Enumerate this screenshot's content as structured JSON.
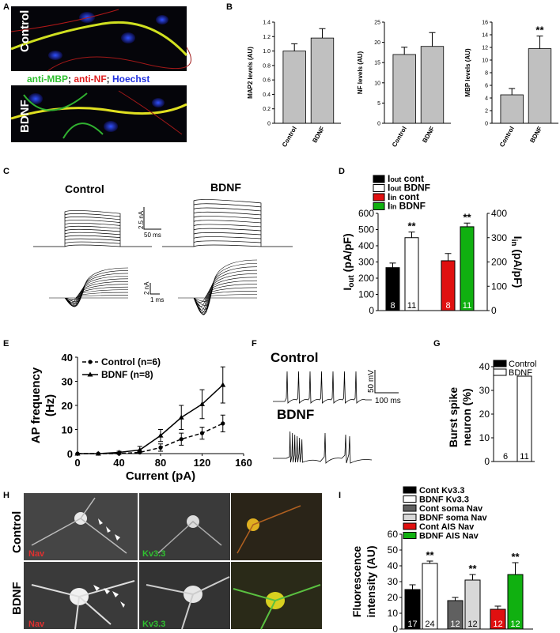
{
  "panels": {
    "A": "A",
    "B": "B",
    "C": "C",
    "D": "D",
    "E": "E",
    "F": "F",
    "G": "G",
    "H": "H",
    "I": "I"
  },
  "panelA": {
    "row_labels": [
      "Control",
      "BDNF"
    ],
    "stain_legend": [
      {
        "text": "anti-MBP",
        "color": "#2fc02f"
      },
      {
        "text": "; ",
        "color": "#111111"
      },
      {
        "text": "anti-NF",
        "color": "#e02020"
      },
      {
        "text": "; ",
        "color": "#111111"
      },
      {
        "text": "Hoechst",
        "color": "#2030e0"
      }
    ]
  },
  "panelC": {
    "titles": [
      "Control",
      "BDNF"
    ],
    "scale1": [
      "2.5 nA",
      "50 ms"
    ],
    "scale2": [
      "2 nA",
      "1 ms"
    ]
  },
  "panelF": {
    "titles": [
      "Control",
      "BDNF"
    ],
    "scale": [
      "50 mV",
      "100 ms"
    ]
  },
  "panelH": {
    "row_labels": [
      "Control",
      "BDNF"
    ],
    "channels": [
      "Nav",
      "Kv3.3"
    ],
    "channel_colors": [
      "#e03030",
      "#30c030"
    ]
  },
  "chart_data": [
    {
      "id": "B1",
      "type": "bar",
      "categories": [
        "Control",
        "BDNF"
      ],
      "values": [
        1.0,
        1.18
      ],
      "errors": [
        0.1,
        0.13
      ],
      "ylabel": "MAP2 levels (AU)",
      "ylim": [
        0,
        1.4
      ],
      "yticks": [
        "0",
        "0.2",
        "0.4",
        "0.6",
        "0.8",
        "1.0",
        "1.2",
        "1.4"
      ],
      "stars": [
        "",
        ""
      ],
      "bar_color": "#c0c0c0"
    },
    {
      "id": "B2",
      "type": "bar",
      "categories": [
        "Control",
        "BDNF"
      ],
      "values": [
        17,
        19
      ],
      "errors": [
        1.8,
        3.4
      ],
      "ylabel": "NF levels (AU)",
      "ylim": [
        0,
        25
      ],
      "yticks": [
        "0",
        "5",
        "10",
        "15",
        "20",
        "25"
      ],
      "stars": [
        "",
        ""
      ],
      "bar_color": "#c0c0c0"
    },
    {
      "id": "B3",
      "type": "bar",
      "categories": [
        "Control",
        "BDNF"
      ],
      "values": [
        4.5,
        11.8
      ],
      "errors": [
        1.0,
        2.0
      ],
      "ylabel": "MBP levels (AU)",
      "ylim": [
        0,
        16
      ],
      "yticks": [
        "0",
        "2",
        "4",
        "6",
        "8",
        "10",
        "12",
        "14",
        "16"
      ],
      "stars": [
        "",
        "**"
      ],
      "bar_color": "#c0c0c0"
    },
    {
      "id": "D",
      "type": "bar",
      "ylabel_left": "Iout (pA/pF)",
      "ylabel_right": "Iin (pA/pF)",
      "ylim_left": [
        0,
        600
      ],
      "ylim_right": [
        0,
        400
      ],
      "yticks_left": [
        "0",
        "100",
        "200",
        "300",
        "400",
        "500",
        "600"
      ],
      "yticks_right": [
        "0",
        "100",
        "200",
        "300",
        "400"
      ],
      "series": [
        {
          "name": "Iout cont",
          "value": 265,
          "error": 28,
          "n": "8",
          "color": "#000000",
          "axis": "left",
          "star": ""
        },
        {
          "name": "Iout BDNF",
          "value": 450,
          "error": 35,
          "n": "11",
          "color": "#ffffff",
          "axis": "left",
          "star": "**"
        },
        {
          "name": "Iin cont",
          "value": 205,
          "error": 30,
          "n": "8",
          "color": "#e01010",
          "axis": "right",
          "star": ""
        },
        {
          "name": "Iin BDNF",
          "value": 345,
          "error": 15,
          "n": "11",
          "color": "#10b010",
          "axis": "right",
          "star": "**"
        }
      ],
      "legend": [
        {
          "main": "I",
          "sub": "out",
          "rest": " cont"
        },
        {
          "main": "I",
          "sub": "out",
          "rest": " BDNF"
        },
        {
          "main": "I",
          "sub": "in",
          "rest": " cont"
        },
        {
          "main": "I",
          "sub": "in",
          "rest": " BDNF"
        }
      ]
    },
    {
      "id": "E",
      "type": "line",
      "xlabel": "Current (pA)",
      "ylabel": [
        "AP frequency",
        "(Hz)"
      ],
      "xlim": [
        0,
        160
      ],
      "ylim": [
        0,
        40
      ],
      "xticks": [
        "0",
        "40",
        "80",
        "120",
        "160"
      ],
      "yticks": [
        "0",
        "10",
        "20",
        "30",
        "40"
      ],
      "x": [
        0,
        20,
        40,
        60,
        80,
        100,
        120,
        140
      ],
      "series": [
        {
          "name": "Control (n=6)",
          "values": [
            0,
            0,
            0,
            0.5,
            2.5,
            6,
            8.5,
            12.5
          ],
          "errors": [
            0,
            0,
            0,
            0.5,
            1.5,
            2.5,
            2.5,
            3.5
          ],
          "dashed": true,
          "marker": "circle"
        },
        {
          "name": "BDNF (n=8)",
          "values": [
            0,
            0,
            0.5,
            1.5,
            7.5,
            15,
            20.5,
            28.5
          ],
          "errors": [
            0,
            0,
            0.5,
            1.5,
            2.5,
            5,
            6,
            7.5
          ],
          "dashed": false,
          "marker": "triangle"
        }
      ],
      "legend": "top-left"
    },
    {
      "id": "G",
      "type": "bar",
      "ylabel": [
        "Burst spike",
        "neuron (%)"
      ],
      "ylim": [
        0,
        40
      ],
      "yticks": [
        "0",
        "10",
        "20",
        "30",
        "40"
      ],
      "series": [
        {
          "name": "Control",
          "value": 0,
          "n": "6",
          "color": "#000000"
        },
        {
          "name": "BDNF",
          "value": 36,
          "n": "11",
          "color": "#ffffff"
        }
      ]
    },
    {
      "id": "I",
      "type": "bar",
      "ylabel": [
        "Fluorescence",
        "intensity (AU)"
      ],
      "ylim": [
        0,
        60
      ],
      "yticks": [
        "0",
        "10",
        "20",
        "30",
        "40",
        "50",
        "60"
      ],
      "series": [
        {
          "name": "Cont Kv3.3",
          "value": 25,
          "error": 3,
          "n": "17",
          "color": "#000000",
          "star": ""
        },
        {
          "name": "BDNF Kv3.3",
          "value": 41.5,
          "error": 1.5,
          "n": "24",
          "color": "#ffffff",
          "star": "**"
        },
        {
          "name": "Cont soma Nav",
          "value": 18,
          "error": 2,
          "n": "12",
          "color": "#606060",
          "star": ""
        },
        {
          "name": "BDNF soma Nav",
          "value": 31,
          "error": 3.5,
          "n": "12",
          "color": "#d8d8d8",
          "star": "**"
        },
        {
          "name": "Cont AIS Nav",
          "value": 12.5,
          "error": 2,
          "n": "12",
          "color": "#e01010",
          "star": ""
        },
        {
          "name": "BDNF AIS Nav",
          "value": 34.5,
          "error": 7.5,
          "n": "12",
          "color": "#10b010",
          "star": "**"
        }
      ]
    }
  ]
}
